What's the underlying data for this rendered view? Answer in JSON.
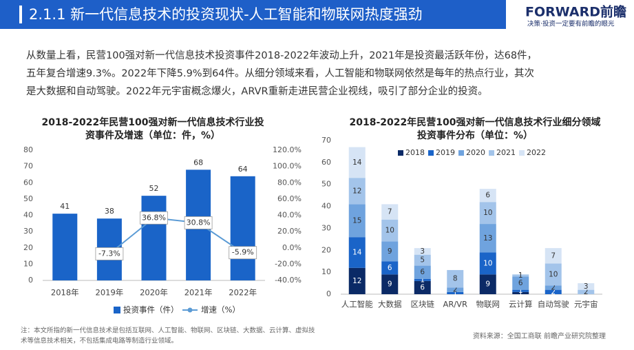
{
  "header": {
    "title": "2.1.1 新一代信息技术的投资现状-人工智能和物联网热度强劲",
    "logo": "FORWARD前瞻",
    "slogan": "决策·投资一定要有前瞻的眼光"
  },
  "body": {
    "lines": [
      "从数量上看，民营100强对新一代信息技术投资事件2018-2022年波动上升，2021年是投资最活跃年份，达68件，",
      "五年复合增速9.3%。2022年下降5.9%到64件。从细分领域来看，人工智能和物联网依然是每年的热点行业，其次",
      "是大数据和自动驾驶。2022年元宇宙概念爆火，ARVR重新走进民营企业视线，吸引了部分企业的投资。"
    ]
  },
  "chart_data": [
    {
      "type": "bar",
      "title": [
        "2018-2022年民营100强对新一代信息技术行业投",
        "资事件及增速（单位：件，%）"
      ],
      "categories": [
        "2018年",
        "2019年",
        "2020年",
        "2021年",
        "2022年"
      ],
      "series": [
        {
          "name": "投资事件（件）",
          "color": "#1a64c8",
          "values": [
            41,
            38,
            52,
            68,
            64
          ]
        },
        {
          "name": "增速（%）",
          "type": "line",
          "axis": "y2",
          "color": "#5b9bd5",
          "values": [
            null,
            -7.3,
            36.8,
            30.8,
            -5.9
          ],
          "value_labels": [
            null,
            "-7.3%",
            "36.8%",
            "30.8%",
            "-5.9%"
          ]
        }
      ],
      "ylim": [
        0,
        80
      ],
      "yticks": [
        0,
        10,
        20,
        30,
        40,
        50,
        60,
        70,
        80
      ],
      "y2lim": [
        -40,
        120
      ],
      "y2ticks": [
        {
          "value": -40,
          "label": "-40.0%"
        },
        {
          "value": -20,
          "label": "-20.0%"
        },
        {
          "value": 0,
          "label": "0.0%"
        },
        {
          "value": 20,
          "label": "20.0%"
        },
        {
          "value": 40,
          "label": "40.0%"
        },
        {
          "value": 60,
          "label": "60.0%"
        },
        {
          "value": 80,
          "label": "80.0%"
        },
        {
          "value": 100,
          "label": "100.0%"
        },
        {
          "value": 120,
          "label": "120.0%"
        }
      ],
      "legend": "bottom"
    },
    {
      "type": "stacked_bar",
      "title": [
        "2018-2022年民营100强对新一代信息技术行业细分领域",
        "投资事件分布（单位：%）"
      ],
      "categories": [
        "人工智能",
        "大数据",
        "区块链",
        "AR/VR",
        "物联网",
        "云计算",
        "自动驾驶",
        "元宇宙"
      ],
      "series": [
        {
          "name": "2018",
          "color": "#0b2a66",
          "values": [
            12,
            9,
            6,
            0,
            9,
            1,
            0,
            0
          ]
        },
        {
          "name": "2019",
          "color": "#1a64c8",
          "values": [
            14,
            6,
            1,
            1,
            10,
            1,
            2,
            0
          ]
        },
        {
          "name": "2020",
          "color": "#6fa3de",
          "values": [
            15,
            9,
            6,
            2,
            13,
            6,
            2,
            0
          ]
        },
        {
          "name": "2021",
          "color": "#a3c4ea",
          "values": [
            12,
            10,
            5,
            8,
            10,
            1,
            10,
            2
          ]
        },
        {
          "name": "2022",
          "color": "#d6e4f5",
          "values": [
            14,
            7,
            3,
            0,
            6,
            0,
            7,
            3
          ]
        }
      ],
      "ylim": [
        0,
        70
      ],
      "yticks": [
        0,
        10,
        20,
        30,
        40,
        50,
        60,
        70
      ],
      "legend": "top"
    }
  ],
  "footnote": {
    "lines": [
      "注：本文所指的新一代信息技术是包括互联网、人工智能、物联网、区块链、大数据、云计算、虚拟技",
      "术等信息技术相关，不包括集成电路等制造行业领域。"
    ]
  },
  "source": "资料来源：全国工商联 前瞻产业研究院整理"
}
